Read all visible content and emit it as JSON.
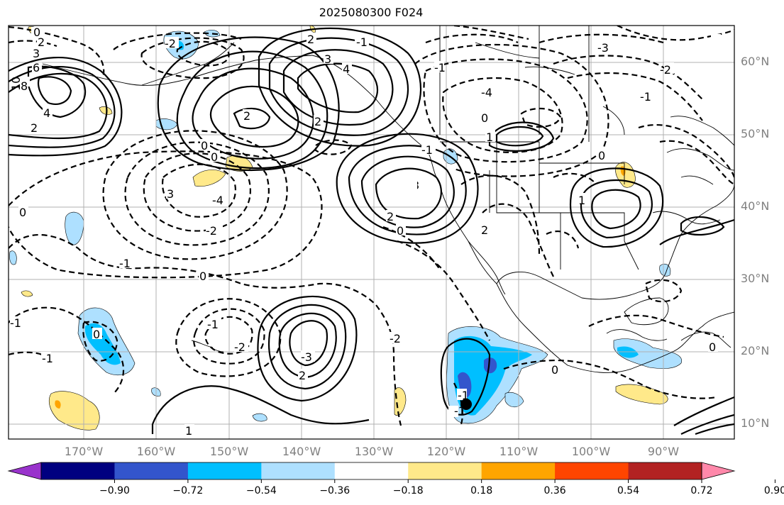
{
  "title": "2025080300 F024",
  "lat_labels": [
    "60°N",
    "50°N",
    "40°N",
    "30°N",
    "20°N",
    "10°N"
  ],
  "lon_labels": [
    "170°W",
    "160°W",
    "150°W",
    "140°W",
    "130°W",
    "120°W",
    "110°W",
    "100°W",
    "90°W"
  ],
  "colorbar": {
    "colors": [
      "#9933cc",
      "#000080",
      "#3355cc",
      "#00bfff",
      "#aee0ff",
      "#ffffff",
      "#ffe98a",
      "#ffa500",
      "#ff4500",
      "#b22222",
      "#ff88aa"
    ],
    "ticks": [
      "−0.90",
      "−0.72",
      "−0.54",
      "−0.36",
      "−0.18",
      "0.18",
      "0.36",
      "0.54",
      "0.72",
      "0.90"
    ]
  },
  "contour_labels": [
    "0",
    "2",
    "3",
    "6",
    "8",
    "10",
    "4",
    "2",
    "-2",
    "2",
    "3",
    "4",
    "2",
    "-1",
    "0",
    "0",
    "2",
    "3",
    "-4",
    "-2",
    "-1",
    "0",
    "3",
    "0",
    "-1",
    "0",
    "2",
    "1",
    "-1",
    "-1",
    "-2",
    "-3",
    "2",
    "0",
    "-2",
    "-3",
    "-4",
    "-1",
    "0",
    "0",
    "-1",
    "1",
    "3",
    "2",
    "-1",
    "-2",
    "-1",
    "-2",
    "-1",
    "2",
    "0",
    "0",
    "1",
    "-1",
    "2",
    "-1",
    "0",
    "0",
    "0",
    "-2",
    "-1",
    "0"
  ]
}
